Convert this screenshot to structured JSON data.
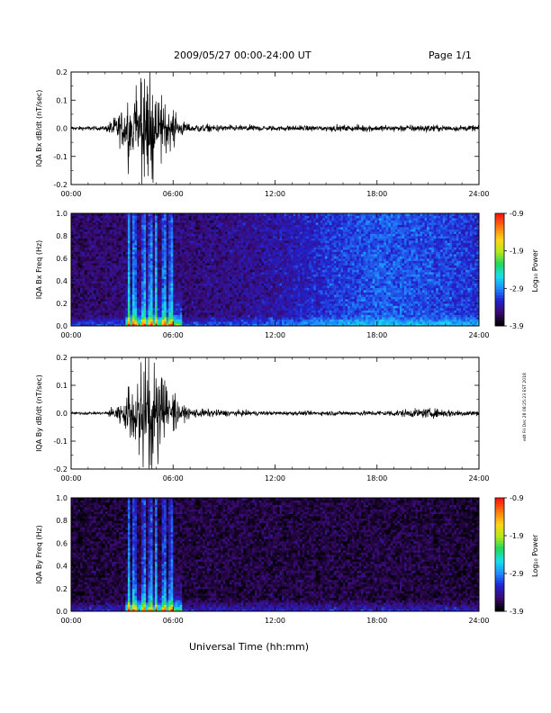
{
  "header": {
    "date_range": "2009/05/27  00:00-24:00 UT",
    "page": "Page 1/1"
  },
  "side_note": "edt Fri Dec 28 08:25:23 EST 2018",
  "x_axis_label": "Universal Time (hh:mm)",
  "colors": {
    "trace": "#000000",
    "colorbar": [
      "#000000",
      "#3a0a6e",
      "#2222d0",
      "#1f8cff",
      "#18e0ea",
      "#22d65a",
      "#b6e81c",
      "#ffd21a",
      "#ff7a10",
      "#ff1a10"
    ]
  },
  "chart_data": [
    {
      "type": "line",
      "ylabel": "IQA Bx dB/dt (nT/sec)",
      "ylim": [
        -0.2,
        0.2
      ],
      "y_ticks": [
        "-0.2",
        "-0.1",
        "0.0",
        "0.1",
        "0.2"
      ],
      "x_ticks": [
        "00:00",
        "06:00",
        "12:00",
        "18:00",
        "24:00"
      ],
      "xlim_hours": [
        0,
        24
      ],
      "series": [
        {
          "x": [
            0,
            2,
            3.4,
            3.6,
            4.2,
            4.6,
            5.0,
            5.5,
            6.0,
            7,
            9,
            12,
            15,
            18,
            21,
            24
          ],
          "envelope": [
            0.012,
            0.013,
            0.16,
            0.09,
            0.2,
            0.2,
            0.14,
            0.09,
            0.06,
            0.03,
            0.02,
            0.016,
            0.018,
            0.02,
            0.022,
            0.016
          ]
        }
      ]
    },
    {
      "type": "heatmap",
      "ylabel": "IQA Bx Freq (Hz)",
      "ylim": [
        0.0,
        1.0
      ],
      "y_ticks": [
        "0.0",
        "0.2",
        "0.4",
        "0.6",
        "0.8",
        "1.0"
      ],
      "x_ticks": [
        "00:00",
        "06:00",
        "12:00",
        "18:00",
        "24:00"
      ],
      "xlim_hours": [
        0,
        24
      ],
      "colorbar": {
        "label": "Log₁₀ Power",
        "range": [
          -3.9,
          -0.9
        ],
        "ticks": [
          "-0.9",
          "-1.9",
          "-2.9",
          "-3.9"
        ]
      },
      "activity_hours": [
        3.4,
        3.7,
        4.3,
        4.7,
        5.0,
        5.5,
        5.9
      ],
      "background_hours": [
        0,
        3,
        6,
        9,
        12,
        15,
        18,
        21,
        24
      ],
      "background_level": [
        -3.6,
        -3.55,
        -3.55,
        -3.5,
        -3.4,
        -3.2,
        -3.05,
        -3.1,
        -3.2
      ]
    },
    {
      "type": "line",
      "ylabel": "IQA By dB/dt (nT/sec)",
      "ylim": [
        -0.2,
        0.2
      ],
      "y_ticks": [
        "-0.2",
        "-0.1",
        "0.0",
        "0.1",
        "0.2"
      ],
      "x_ticks": [
        "00:00",
        "06:00",
        "12:00",
        "18:00",
        "24:00"
      ],
      "xlim_hours": [
        0,
        24
      ],
      "series": [
        {
          "x": [
            0,
            2,
            3.4,
            3.6,
            4.2,
            4.6,
            5.0,
            5.5,
            6.0,
            7,
            9,
            12,
            15,
            18,
            21,
            24
          ],
          "envelope": [
            0.008,
            0.009,
            0.1,
            0.06,
            0.2,
            0.2,
            0.2,
            0.12,
            0.07,
            0.03,
            0.02,
            0.012,
            0.014,
            0.016,
            0.03,
            0.016
          ]
        }
      ]
    },
    {
      "type": "heatmap",
      "ylabel": "IQA By Freq (Hz)",
      "ylim": [
        0.0,
        1.0
      ],
      "y_ticks": [
        "0.0",
        "0.2",
        "0.4",
        "0.6",
        "0.8",
        "1.0"
      ],
      "x_ticks": [
        "00:00",
        "06:00",
        "12:00",
        "18:00",
        "24:00"
      ],
      "xlim_hours": [
        0,
        24
      ],
      "colorbar": {
        "label": "Log₁₀ Power",
        "range": [
          -3.9,
          -0.9
        ],
        "ticks": [
          "-0.9",
          "-1.9",
          "-2.9",
          "-3.9"
        ]
      },
      "activity_hours": [
        3.4,
        3.7,
        4.3,
        4.7,
        5.0,
        5.5,
        5.9
      ],
      "background_hours": [
        0,
        3,
        6,
        9,
        12,
        15,
        18,
        21,
        24
      ],
      "background_level": [
        -3.75,
        -3.7,
        -3.7,
        -3.7,
        -3.7,
        -3.7,
        -3.7,
        -3.7,
        -3.75
      ]
    }
  ]
}
